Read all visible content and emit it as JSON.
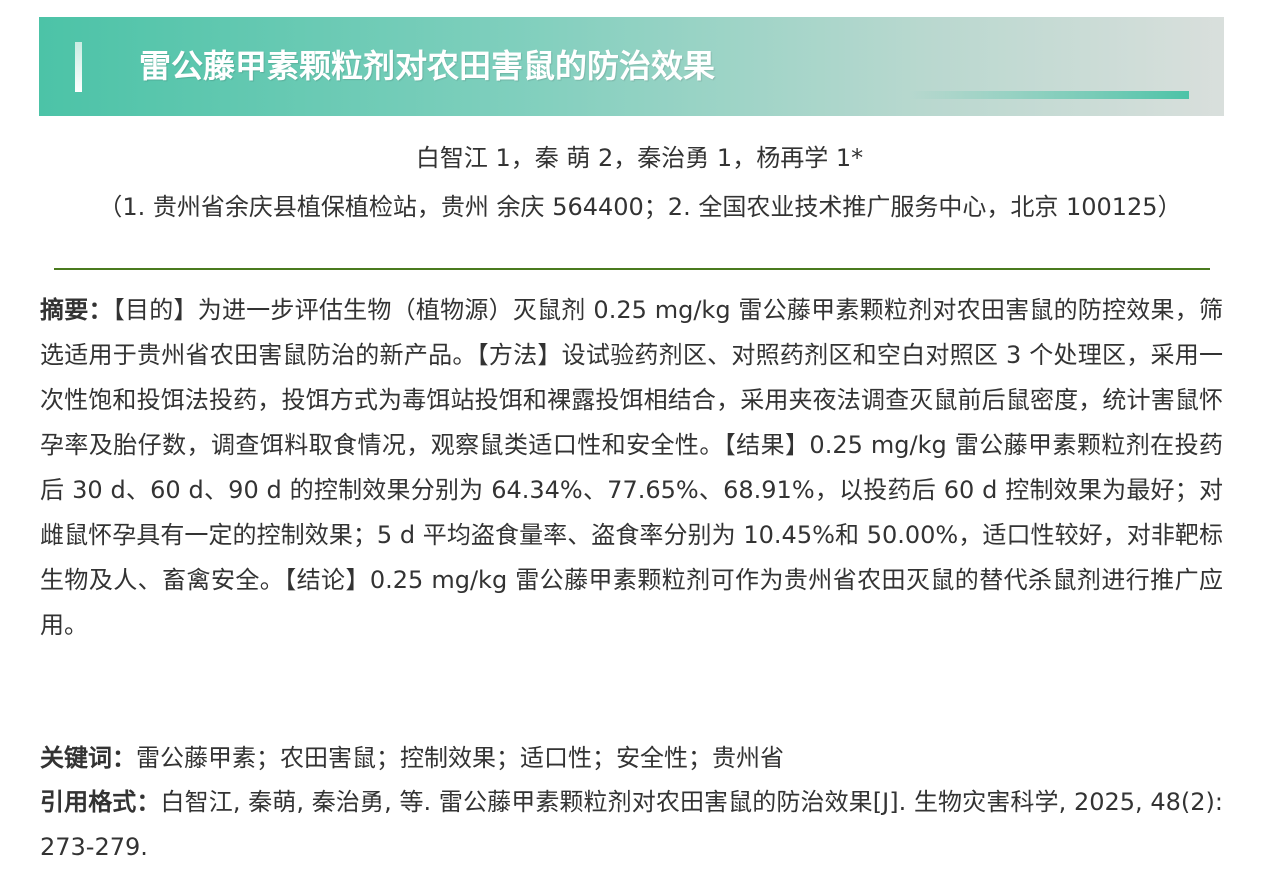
{
  "title": "雷公藤甲素颗粒剂对农田害鼠的防治效果",
  "authors": "白智江 1，秦 萌 2，秦治勇 1，杨再学 1*",
  "affiliations": "（1. 贵州省余庆县植保植检站，贵州 余庆 564400；2. 全国农业技术推广服务中心，北京 100125）",
  "abstract": {
    "label": "摘要：",
    "text": "【目的】为进一步评估生物（植物源）灭鼠剂 0.25 mg/kg 雷公藤甲素颗粒剂对农田害鼠的防控效果，筛选适用于贵州省农田害鼠防治的新产品。【方法】设试验药剂区、对照药剂区和空白对照区 3 个处理区，采用一次性饱和投饵法投药，投饵方式为毒饵站投饵和裸露投饵相结合，采用夹夜法调查灭鼠前后鼠密度，统计害鼠怀孕率及胎仔数，调查饵料取食情况，观察鼠类适口性和安全性。【结果】0.25 mg/kg 雷公藤甲素颗粒剂在投药后 30 d、60 d、90 d 的控制效果分别为 64.34%、77.65%、68.91%，以投药后 60 d 控制效果为最好；对雌鼠怀孕具有一定的控制效果；5 d 平均盗食量率、盗食率分别为 10.45%和 50.00%，适口性较好，对非靶标生物及人、畜禽安全。【结论】0.25 mg/kg 雷公藤甲素颗粒剂可作为贵州省农田灭鼠的替代杀鼠剂进行推广应用。"
  },
  "keywords": {
    "label": "关键词：",
    "text": "雷公藤甲素；农田害鼠；控制效果；适口性；安全性；贵州省"
  },
  "citation": {
    "label": "引用格式：",
    "text": "白智江, 秦萌, 秦治勇, 等. 雷公藤甲素颗粒剂对农田害鼠的防治效果[J]. 生物灾害科学, 2025, 48(2): 273-279."
  },
  "colors": {
    "banner_start": "#4cc3a7",
    "banner_end": "#d9dfdc",
    "rule": "#4a7a1e",
    "text": "#333333"
  }
}
